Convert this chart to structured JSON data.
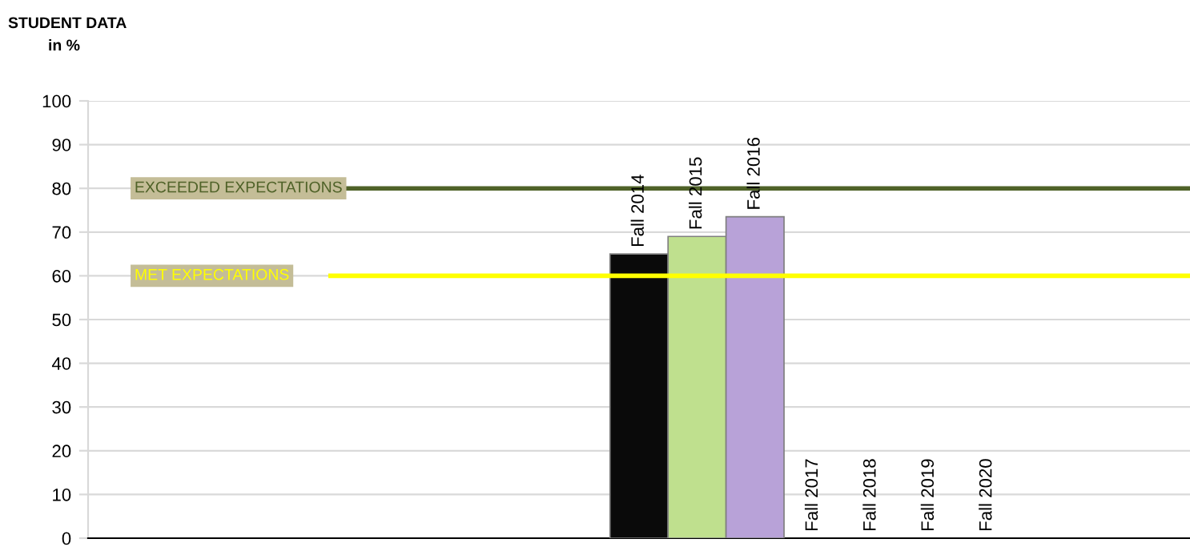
{
  "chart_data": {
    "type": "bar",
    "title": "STUDENT DATA",
    "subtitle": "in %",
    "categories": [
      null,
      null,
      null,
      null,
      null,
      null,
      null,
      null,
      null,
      "Fall 2014",
      "Fall 2015",
      "Fall 2016",
      "Fall 2017",
      "Fall 2018",
      "Fall 2019",
      "Fall 2020",
      null,
      null,
      null
    ],
    "values": [
      null,
      null,
      null,
      null,
      null,
      null,
      null,
      null,
      null,
      65,
      69,
      73.5,
      null,
      null,
      null,
      null,
      null,
      null,
      null
    ],
    "colors": [
      "#000000",
      "#000000",
      "#000000",
      "#000000",
      "#000000",
      "#000000",
      "#000000",
      "#000000",
      "#000000",
      "#0a0a0a",
      "#bfe08e",
      "#b8a2d8",
      "#000000",
      "#000000",
      "#000000",
      "#000000",
      "#000000",
      "#000000",
      "#000000"
    ],
    "ylim": [
      0,
      100
    ],
    "yticks": [
      0,
      10,
      20,
      30,
      40,
      50,
      60,
      70,
      80,
      90,
      100
    ],
    "grid": "y",
    "ref_lines": [
      {
        "axis": "y",
        "value": 80,
        "label": "EXCEEDED EXPECTATIONS",
        "color": "#4f6228"
      },
      {
        "axis": "y",
        "value": 60,
        "label": "MET EXPECTATIONS",
        "color": "#ffff00"
      }
    ]
  }
}
